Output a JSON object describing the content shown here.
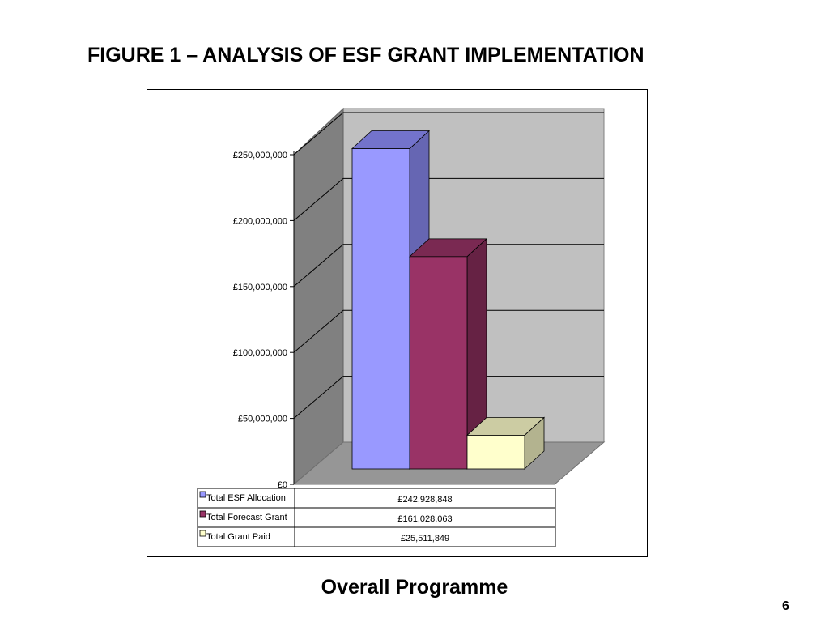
{
  "page": {
    "title": "FIGURE 1 – ANALYSIS OF ESF GRANT IMPLEMENTATION",
    "subtitle": "Overall Programme",
    "page_number": "6"
  },
  "chart_data": {
    "type": "bar",
    "style": "3d-column",
    "title": "",
    "xlabel": "",
    "ylabel": "",
    "ylim": [
      0,
      250000000
    ],
    "yticks": [
      0,
      50000000,
      100000000,
      150000000,
      200000000,
      250000000
    ],
    "ytick_labels": [
      "£0",
      "£50,000,000",
      "£100,000,000",
      "£150,000,000",
      "£200,000,000",
      "£250,000,000"
    ],
    "grid": true,
    "legend": "data-table-below",
    "series": [
      {
        "name": "Total ESF Allocation",
        "value": 242928848,
        "label": "£242,928,848",
        "color": "#9999ff",
        "side": "#6666b3",
        "top": "#7373cc"
      },
      {
        "name": "Total Forecast Grant",
        "value": 161028063,
        "label": "£161,028,063",
        "color": "#993366",
        "side": "#662244",
        "top": "#7a2952"
      },
      {
        "name": "Total Grant Paid",
        "value": 25511849,
        "label": "£25,511,849",
        "color": "#ffffcc",
        "side": "#b3b38f",
        "top": "#cccca3"
      }
    ]
  }
}
